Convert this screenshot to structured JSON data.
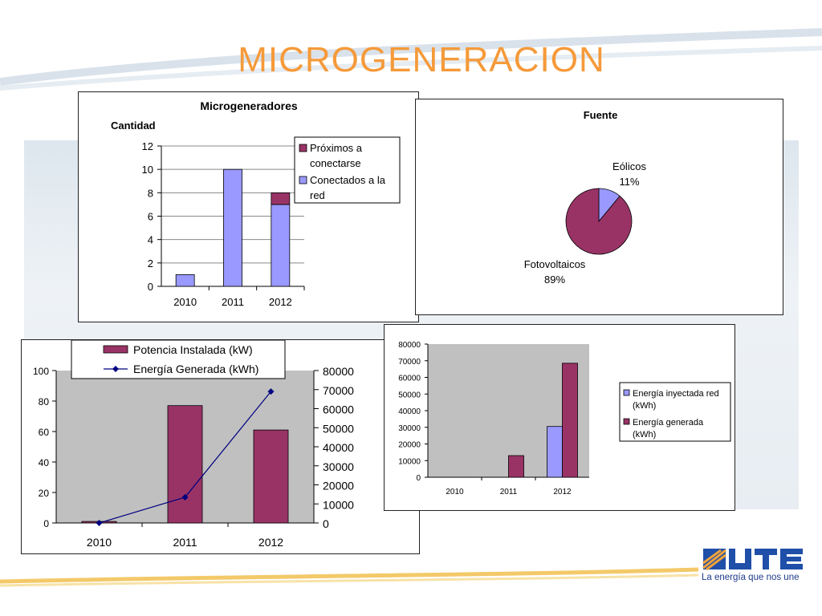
{
  "page_title": "MICROGENERACION",
  "brand": {
    "tagline": "La energía que nos une",
    "logo_colors": [
      "#1f4fa8",
      "#f2a33a",
      "#1e3a8a"
    ]
  },
  "chart_data": [
    {
      "type": "bar",
      "stacked": true,
      "title": "Microgeneradores",
      "ylabel": "Cantidad",
      "categories": [
        "2010",
        "2011",
        "2012"
      ],
      "ylim": [
        0,
        12
      ],
      "yticks": [
        "0",
        "2",
        "4",
        "6",
        "8",
        "10",
        "12"
      ],
      "series": [
        {
          "name": "Próximos a conectarse",
          "name_lines": [
            "Próximos a",
            "conectarse"
          ],
          "color": "#993366",
          "values": [
            0,
            0,
            1
          ]
        },
        {
          "name": "Conectados a la red",
          "name_lines": [
            "Conectados a la",
            "red"
          ],
          "color": "#9999ff",
          "values": [
            1,
            10,
            7
          ]
        }
      ],
      "legend": "top-right",
      "grid": true
    },
    {
      "type": "pie",
      "title": "Fuente",
      "slices": [
        {
          "label": "Eólicos",
          "pct_label": "11%",
          "value": 11,
          "color": "#9999ff"
        },
        {
          "label": "Fotovoltaicos",
          "pct_label": "89%",
          "value": 89,
          "color": "#993366"
        }
      ]
    },
    {
      "type": "bar+line",
      "categories": [
        "2010",
        "2011",
        "2012"
      ],
      "ylim_left": [
        0,
        100
      ],
      "yticks_left": [
        "0",
        "20",
        "40",
        "60",
        "80",
        "100"
      ],
      "ylim_right": [
        0,
        80000
      ],
      "yticks_right": [
        "0",
        "10000",
        "20000",
        "30000",
        "40000",
        "50000",
        "60000",
        "70000",
        "80000"
      ],
      "series": [
        {
          "name": "Potencia Instalada (kW)",
          "type": "bar",
          "axis": "left",
          "color": "#993366",
          "values": [
            1,
            77,
            61
          ]
        },
        {
          "name": "Energía Generada (kWh)",
          "type": "line",
          "axis": "right",
          "color": "#000080",
          "values": [
            0,
            13500,
            69000
          ]
        }
      ],
      "legend": "top",
      "plot_bg": "#c0c0c0"
    },
    {
      "type": "bar",
      "categories": [
        "2010",
        "2011",
        "2012"
      ],
      "ylim": [
        0,
        80000
      ],
      "yticks": [
        "0",
        "10000",
        "20000",
        "30000",
        "40000",
        "50000",
        "60000",
        "70000",
        "80000"
      ],
      "series": [
        {
          "name": "Energía inyectada red (kWh)",
          "name_lines": [
            "Energía inyectada red",
            "(kWh)"
          ],
          "color": "#9999ff",
          "values": [
            0,
            0,
            30500
          ]
        },
        {
          "name": "Energía generada (kWh)",
          "name_lines": [
            "Energía generada",
            "(kWh)"
          ],
          "color": "#993366",
          "values": [
            0,
            13000,
            68500
          ]
        }
      ],
      "legend": "right",
      "plot_bg": "#c0c0c0"
    }
  ]
}
